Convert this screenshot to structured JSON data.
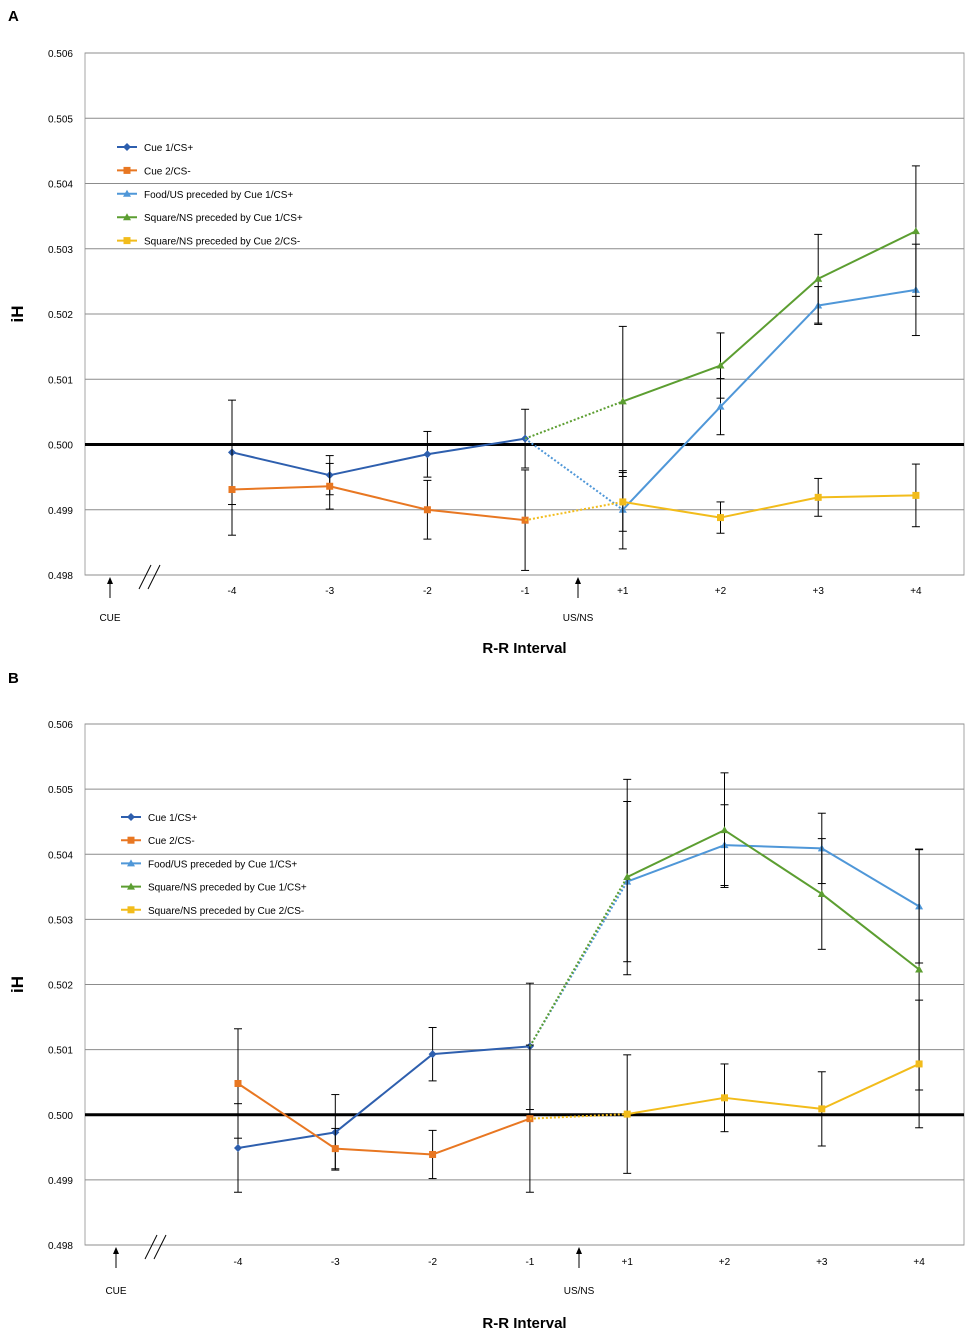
{
  "chart_data": [
    {
      "panel_label": "A",
      "type": "line",
      "ylabel": "iH",
      "xlabel": "R-R Interval",
      "categories": [
        "-4",
        "-3",
        "-2",
        "-1",
        "+1",
        "+2",
        "+3",
        "+4"
      ],
      "ylim": [
        0.498,
        0.506
      ],
      "ytick_labels": [
        "0.498",
        "0.499",
        "0.500",
        "0.501",
        "0.502",
        "0.503",
        "0.504",
        "0.505",
        "0.506"
      ],
      "baseline": 0.5,
      "markers": {
        "cue_label": "CUE",
        "onset_label": "US/NS"
      },
      "legend_position": "top-left",
      "series": [
        {
          "name": "Cue 1/CS+",
          "color": "#2e5fae",
          "marker": "diamond",
          "values": [
            0.49988,
            0.49953,
            0.49985,
            0.50009,
            null,
            null,
            null,
            null
          ],
          "errors": [
            0.0008,
            0.0003,
            0.00035,
            0.00045,
            null,
            null,
            null,
            null
          ]
        },
        {
          "name": "Cue 2/CS-",
          "color": "#e87722",
          "marker": "square",
          "values": [
            0.49931,
            0.49936,
            0.499,
            0.49884,
            null,
            null,
            null,
            null
          ],
          "errors": [
            0.0007,
            0.00035,
            0.00045,
            0.00077,
            null,
            null,
            null,
            null
          ]
        },
        {
          "name": "Food/US preceded by Cue 1/CS+",
          "color": "#4f97d8",
          "marker": "triangle",
          "values": [
            null,
            null,
            null,
            0.50009,
            0.499,
            0.50058,
            0.50213,
            0.50237
          ],
          "errors": [
            null,
            null,
            null,
            null,
            0.0006,
            0.00043,
            0.00029,
            0.0007
          ]
        },
        {
          "name": "Square/NS preceded by Cue 1/CS+",
          "color": "#5c9e31",
          "marker": "triangle",
          "values": [
            null,
            null,
            null,
            0.50009,
            0.50066,
            0.50121,
            0.50254,
            0.50327
          ],
          "errors": [
            null,
            null,
            null,
            null,
            0.00115,
            0.0005,
            0.00068,
            0.001
          ]
        },
        {
          "name": "Square/NS preceded by Cue 2/CS-",
          "color": "#f2bc1b",
          "marker": "square",
          "values": [
            null,
            null,
            null,
            0.49884,
            0.49912,
            0.49888,
            0.49919,
            0.49922
          ],
          "errors": [
            null,
            null,
            null,
            null,
            0.00045,
            0.00024,
            0.00029,
            0.00048
          ]
        }
      ]
    },
    {
      "panel_label": "B",
      "type": "line",
      "ylabel": "iH",
      "xlabel": "R-R Interval",
      "categories": [
        "-4",
        "-3",
        "-2",
        "-1",
        "+1",
        "+2",
        "+3",
        "+4"
      ],
      "ylim": [
        0.498,
        0.506
      ],
      "ytick_labels": [
        "0.498",
        "0.499",
        "0.500",
        "0.501",
        "0.502",
        "0.503",
        "0.504",
        "0.505",
        "0.506"
      ],
      "baseline": 0.5,
      "markers": {
        "cue_label": "CUE",
        "onset_label": "US/NS"
      },
      "legend_position": "top-left",
      "series": [
        {
          "name": "Cue 1/CS+",
          "color": "#2e5fae",
          "marker": "diamond",
          "values": [
            0.49949,
            0.49973,
            0.50093,
            0.50105,
            null,
            null,
            null,
            null
          ],
          "errors": [
            0.00068,
            0.00058,
            0.00041,
            0.00097,
            null,
            null,
            null,
            null
          ]
        },
        {
          "name": "Cue 2/CS-",
          "color": "#e87722",
          "marker": "square",
          "values": [
            0.50048,
            0.49948,
            0.49939,
            0.49994,
            null,
            null,
            null,
            null
          ],
          "errors": [
            0.00084,
            0.00031,
            0.00037,
            0.00113,
            null,
            null,
            null,
            null
          ]
        },
        {
          "name": "Food/US preceded by Cue 1/CS+",
          "color": "#4f97d8",
          "marker": "triangle",
          "values": [
            null,
            null,
            null,
            0.50105,
            0.50358,
            0.50414,
            0.50409,
            0.5032
          ],
          "errors": [
            null,
            null,
            null,
            null,
            0.00123,
            0.00062,
            0.00054,
            0.00087
          ]
        },
        {
          "name": "Square/NS preceded by Cue 1/CS+",
          "color": "#5c9e31",
          "marker": "triangle",
          "values": [
            null,
            null,
            null,
            0.50105,
            0.50365,
            0.50437,
            0.50339,
            0.50223
          ],
          "errors": [
            null,
            null,
            null,
            null,
            0.0015,
            0.00088,
            0.00085,
            0.00185
          ]
        },
        {
          "name": "Square/NS preceded by Cue 2/CS-",
          "color": "#f2bc1b",
          "marker": "square",
          "values": [
            null,
            null,
            null,
            0.49994,
            0.50001,
            0.50026,
            0.50009,
            0.50078
          ],
          "errors": [
            null,
            null,
            null,
            null,
            0.00091,
            0.00052,
            0.00057,
            0.00098
          ]
        }
      ]
    }
  ]
}
